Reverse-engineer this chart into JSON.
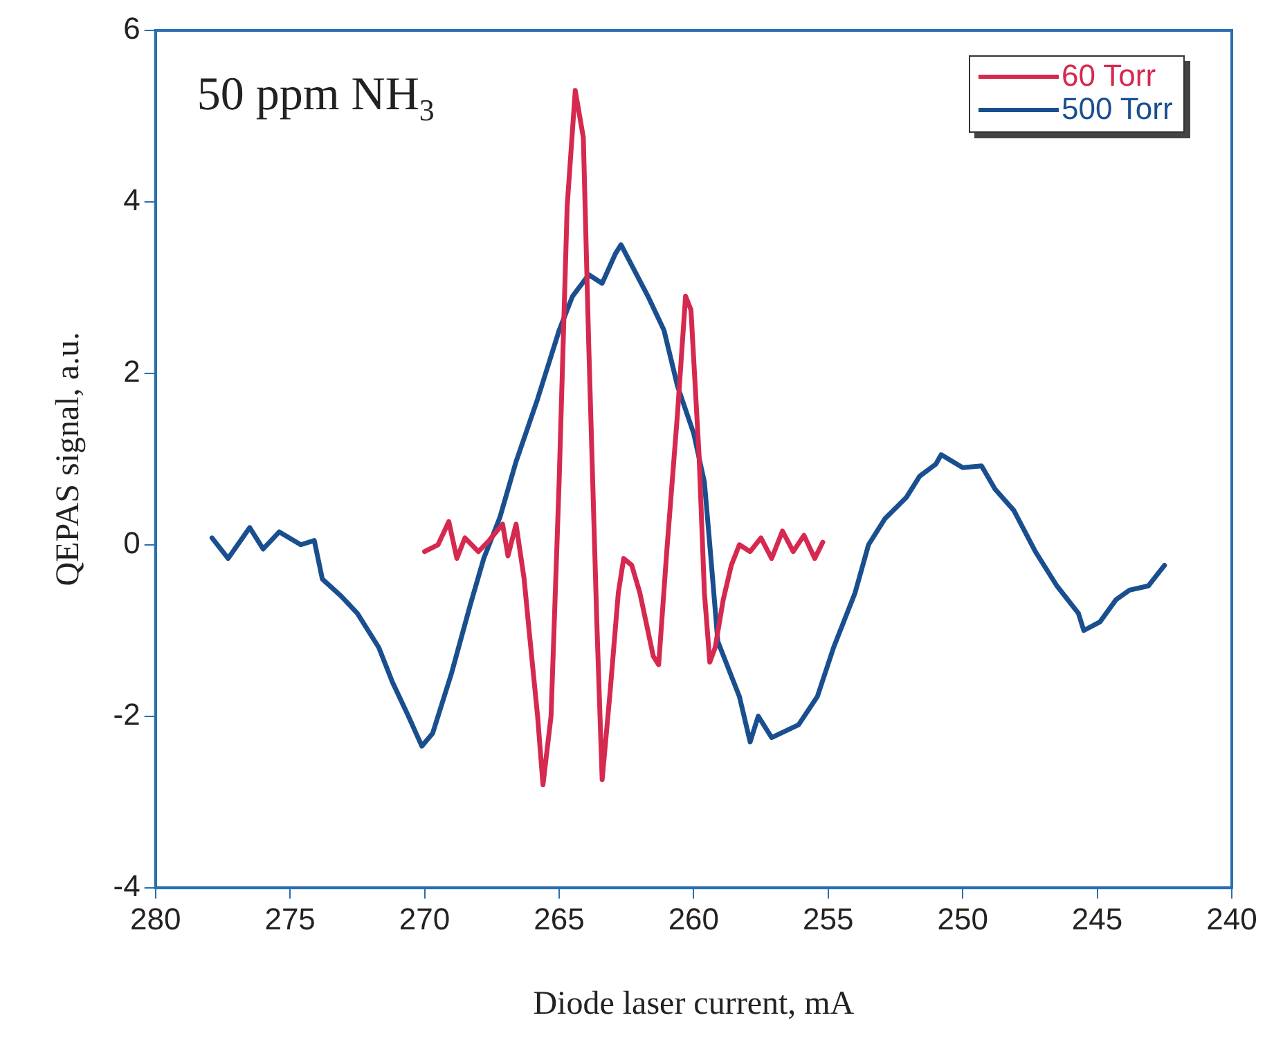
{
  "chart_data": {
    "type": "line",
    "xlabel": "Diode laser current, mA",
    "ylabel": "QEPAS signal, a.u.",
    "annotations": [
      "50 ppm NH$_{3}$"
    ],
    "xlim": [
      280,
      240
    ],
    "xticks": [
      280,
      275,
      270,
      265,
      260,
      255,
      250,
      245,
      240
    ],
    "ylim": [
      -4,
      6
    ],
    "yticks": [
      -4,
      -2,
      0,
      2,
      4,
      6
    ],
    "grid": false,
    "legend": "top right",
    "marker": "none",
    "line_style": "solid",
    "series": [
      {
        "name": "60 Torr",
        "color": "#d6294f",
        "x": [
          270,
          269.5,
          269.1,
          268.8,
          268.5,
          268.0,
          267.6,
          267.1,
          266.9,
          266.6,
          266.3,
          266.1,
          265.8,
          265.6,
          265.3,
          265,
          264.7,
          264.4,
          264.1,
          263.9,
          263.6,
          263.4,
          263.1,
          262.8,
          262.6,
          262.3,
          262.0,
          261.5,
          261.3,
          261.0,
          260.6,
          260.3,
          260.1,
          259.8,
          259.6,
          259.4,
          259.2,
          258.9,
          258.6,
          258.3,
          257.9,
          257.5,
          257.1,
          256.7,
          256.3,
          255.9,
          255.5,
          255.2
        ],
        "values": [
          -0.08,
          0,
          0.27,
          -0.16,
          0.08,
          -0.08,
          0.05,
          0.24,
          -0.13,
          0.24,
          -0.4,
          -1.05,
          -2.0,
          -2.8,
          -2.0,
          0.73,
          3.95,
          5.3,
          4.75,
          2.34,
          -0.89,
          -2.74,
          -1.7,
          -0.56,
          -0.16,
          -0.24,
          -0.56,
          -1.3,
          -1.4,
          -0.08,
          1.53,
          2.9,
          2.74,
          1.05,
          -0.56,
          -1.37,
          -1.2,
          -0.64,
          -0.24,
          0,
          -0.08,
          0.08,
          -0.16,
          0.16,
          -0.08,
          0.11,
          -0.16,
          0.03
        ]
      },
      {
        "name": "500 Torr",
        "color": "#1a4f8f",
        "x": [
          277.9,
          277.3,
          276.5,
          276,
          275.4,
          274.6,
          274.1,
          273.8,
          273.1,
          272.5,
          271.7,
          271.2,
          270.6,
          270.1,
          269.7,
          269.0,
          268.3,
          267.8,
          267.2,
          266.6,
          265.8,
          265,
          264.5,
          263.9,
          263.4,
          262.9,
          262.7,
          262.2,
          261.7,
          261.1,
          260.6,
          260,
          259.6,
          259.4,
          259.1,
          258.3,
          257.9,
          257.6,
          257.1,
          256.1,
          255.4,
          254.8,
          254.0,
          253.5,
          252.9,
          252.1,
          251.6,
          251.0,
          250.8,
          250.0,
          249.3,
          248.8,
          248.1,
          247.3,
          246.5,
          245.7,
          245.5,
          244.9,
          244.3,
          243.8,
          243.1,
          242.7,
          242.5
        ],
        "values": [
          0.08,
          -0.16,
          0.2,
          -0.05,
          0.15,
          0,
          0.05,
          -0.4,
          -0.6,
          -0.8,
          -1.2,
          -1.6,
          -2.0,
          -2.35,
          -2.2,
          -1.5,
          -0.7,
          -0.16,
          0.32,
          0.97,
          1.7,
          2.5,
          2.9,
          3.15,
          3.05,
          3.4,
          3.5,
          3.2,
          2.9,
          2.5,
          1.85,
          1.3,
          0.73,
          0,
          -1.13,
          -1.77,
          -2.3,
          -2.0,
          -2.25,
          -2.1,
          -1.77,
          -1.2,
          -0.56,
          0,
          0.3,
          0.55,
          0.8,
          0.94,
          1.05,
          0.9,
          0.92,
          0.65,
          0.4,
          -0.08,
          -0.48,
          -0.8,
          -1.0,
          -0.9,
          -0.64,
          -0.53,
          -0.48,
          -0.32,
          -0.24
        ]
      }
    ]
  }
}
